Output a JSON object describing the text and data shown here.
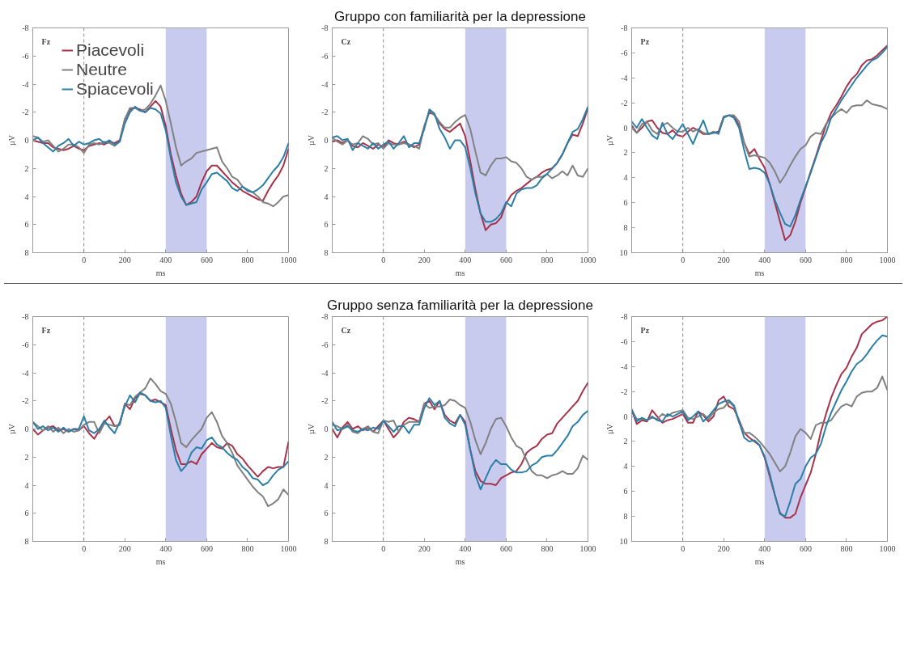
{
  "chart_data": [
    {
      "type": "line",
      "annotations": [
        "Fz"
      ],
      "xlabel": "ms",
      "ylabel": "µV",
      "legend": "top left",
      "x": [
        -250,
        -225,
        -200,
        -175,
        -150,
        -125,
        -100,
        -75,
        -50,
        -25,
        0,
        25,
        50,
        75,
        100,
        125,
        150,
        175,
        200,
        225,
        250,
        275,
        300,
        325,
        350,
        375,
        400,
        425,
        450,
        475,
        500,
        525,
        550,
        575,
        600,
        625,
        650,
        675,
        700,
        725,
        750,
        775,
        800,
        825,
        850,
        875,
        900,
        925,
        950,
        975,
        1000
      ],
      "xlim": [
        -250,
        1000
      ],
      "xticks": [
        0,
        200,
        400,
        600,
        800,
        1000
      ],
      "ylim": [
        8,
        -8
      ],
      "yticks": [
        -8,
        -6,
        -4,
        -2,
        0,
        2,
        4,
        6,
        8
      ],
      "ref_lines": [
        {
          "axis": "x",
          "value": 0,
          "color": "#8c8c8c",
          "line_style": "dashed"
        }
      ],
      "bands": [
        {
          "axis": "x",
          "from": 400,
          "to": 600,
          "color": "#c8cbee"
        }
      ],
      "series": [
        {
          "name": "Piacevoli",
          "color": "#a8324a",
          "values": [
            0.0,
            0.1,
            0.2,
            0.2,
            0.5,
            0.6,
            0.7,
            0.6,
            0.4,
            0.6,
            0.7,
            0.4,
            0.3,
            0.2,
            0.3,
            0.1,
            0.2,
            0.0,
            -1.5,
            -2.2,
            -2.3,
            -2.2,
            -2.0,
            -2.4,
            -2.8,
            -2.4,
            -1.0,
            1.0,
            2.5,
            3.8,
            4.6,
            4.4,
            4.0,
            3.0,
            2.2,
            1.8,
            1.8,
            2.2,
            2.6,
            3.0,
            3.3,
            3.6,
            3.8,
            4.0,
            4.2,
            4.3,
            3.6,
            3.0,
            2.5,
            1.8,
            0.6
          ]
        },
        {
          "name": "Neutre",
          "color": "#808080",
          "values": [
            -0.3,
            -0.2,
            0.1,
            0.0,
            0.4,
            0.8,
            0.6,
            0.3,
            0.3,
            0.5,
            0.9,
            0.3,
            0.2,
            0.3,
            0.1,
            0.2,
            0.4,
            0.1,
            -1.5,
            -2.3,
            -2.3,
            -2.1,
            -2.2,
            -2.6,
            -3.2,
            -3.9,
            -2.8,
            -1.2,
            0.5,
            1.8,
            1.5,
            1.3,
            0.9,
            0.8,
            0.7,
            0.6,
            0.5,
            1.5,
            2.0,
            2.6,
            2.8,
            3.3,
            3.5,
            3.7,
            4.0,
            4.4,
            4.5,
            4.7,
            4.4,
            4.0,
            3.9
          ]
        },
        {
          "name": "Spiacevoli",
          "color": "#2b7fa6",
          "values": [
            0.0,
            -0.2,
            0.2,
            0.5,
            0.8,
            0.4,
            0.2,
            -0.1,
            0.4,
            0.1,
            0.3,
            0.2,
            0.0,
            -0.1,
            0.2,
            0.0,
            0.3,
            0.1,
            -1.2,
            -2.0,
            -2.4,
            -2.1,
            -2.0,
            -2.3,
            -2.2,
            -1.9,
            -0.7,
            1.3,
            3.0,
            4.0,
            4.6,
            4.5,
            4.4,
            3.5,
            3.0,
            2.4,
            2.3,
            2.6,
            2.9,
            3.4,
            3.6,
            3.3,
            3.6,
            3.7,
            3.5,
            3.2,
            2.7,
            2.2,
            1.8,
            1.2,
            0.2
          ]
        }
      ]
    },
    {
      "type": "line",
      "title": "Gruppo con familiarità per la depressione",
      "annotations": [
        "Cz"
      ],
      "xlabel": "ms",
      "ylabel": "µV",
      "x": [
        -250,
        -225,
        -200,
        -175,
        -150,
        -125,
        -100,
        -75,
        -50,
        -25,
        0,
        25,
        50,
        75,
        100,
        125,
        150,
        175,
        200,
        225,
        250,
        275,
        300,
        325,
        350,
        375,
        400,
        425,
        450,
        475,
        500,
        525,
        550,
        575,
        600,
        625,
        650,
        675,
        700,
        725,
        750,
        775,
        800,
        825,
        850,
        875,
        900,
        925,
        950,
        975,
        1000
      ],
      "xlim": [
        -250,
        1000
      ],
      "xticks": [
        0,
        200,
        400,
        600,
        800,
        1000
      ],
      "ylim": [
        8,
        -8
      ],
      "yticks": [
        -8,
        -6,
        -4,
        -2,
        0,
        2,
        4,
        6,
        8
      ],
      "ref_lines": [
        {
          "axis": "x",
          "value": 0,
          "color": "#8c8c8c",
          "line_style": "dashed"
        }
      ],
      "bands": [
        {
          "axis": "x",
          "from": 400,
          "to": 600,
          "color": "#c8cbee"
        }
      ],
      "series": [
        {
          "color": "#a8324a",
          "values": [
            0.1,
            0.0,
            0.2,
            0.0,
            0.4,
            0.5,
            0.2,
            0.4,
            0.6,
            0.3,
            0.5,
            0.0,
            0.2,
            0.3,
            0.1,
            0.3,
            0.5,
            0.3,
            -1.0,
            -2.0,
            -1.8,
            -1.2,
            -0.8,
            -0.6,
            -0.9,
            -1.2,
            -0.3,
            1.5,
            3.5,
            5.2,
            6.4,
            6.0,
            5.9,
            5.5,
            4.5,
            3.9,
            3.6,
            3.4,
            3.1,
            2.8,
            2.6,
            2.3,
            2.1,
            2.0,
            1.6,
            1.0,
            0.2,
            -0.4,
            -0.3,
            -1.2,
            -2.3
          ]
        },
        {
          "color": "#808080",
          "values": [
            -0.2,
            0.1,
            0.3,
            0.0,
            0.3,
            0.2,
            -0.3,
            -0.1,
            0.3,
            0.2,
            0.6,
            0.2,
            0.3,
            0.3,
            0.2,
            0.3,
            0.4,
            0.6,
            -1.0,
            -2.1,
            -1.8,
            -1.3,
            -0.9,
            -0.9,
            -1.3,
            -1.6,
            -1.8,
            -0.8,
            0.8,
            2.3,
            2.5,
            1.8,
            1.3,
            1.3,
            1.2,
            1.5,
            1.6,
            2.0,
            2.6,
            2.8,
            2.6,
            2.6,
            2.4,
            2.7,
            2.5,
            2.2,
            2.5,
            1.8,
            2.5,
            2.6,
            2.0
          ]
        },
        {
          "color": "#2b7fa6",
          "values": [
            -0.2,
            -0.3,
            0.0,
            -0.1,
            0.7,
            0.2,
            0.4,
            0.6,
            0.2,
            0.6,
            0.3,
            0.1,
            0.6,
            0.2,
            -0.3,
            0.5,
            0.2,
            0.2,
            -0.8,
            -2.2,
            -1.9,
            -0.8,
            -0.2,
            0.6,
            0.0,
            0.0,
            0.5,
            2.0,
            3.8,
            5.2,
            5.8,
            5.8,
            5.6,
            5.2,
            4.4,
            4.7,
            3.8,
            3.5,
            3.4,
            3.4,
            3.2,
            2.7,
            2.4,
            2.0,
            1.6,
            1.0,
            0.2,
            -0.6,
            -0.8,
            -1.5,
            -2.4
          ]
        }
      ]
    },
    {
      "type": "line",
      "annotations": [
        "Pz"
      ],
      "xlabel": "ms",
      "ylabel": "µV",
      "x": [
        -250,
        -225,
        -200,
        -175,
        -150,
        -125,
        -100,
        -75,
        -50,
        -25,
        0,
        25,
        50,
        75,
        100,
        125,
        150,
        175,
        200,
        225,
        250,
        275,
        300,
        325,
        350,
        375,
        400,
        425,
        450,
        475,
        500,
        525,
        550,
        575,
        600,
        625,
        650,
        675,
        700,
        725,
        750,
        775,
        800,
        825,
        850,
        875,
        900,
        925,
        950,
        975,
        1000
      ],
      "xlim": [
        -250,
        1000
      ],
      "xticks": [
        0,
        200,
        400,
        600,
        800,
        1000
      ],
      "ylim": [
        10,
        -8
      ],
      "yticks": [
        -8,
        -6,
        -4,
        -2,
        0,
        2,
        4,
        6,
        8,
        10
      ],
      "ref_lines": [
        {
          "axis": "x",
          "value": 0,
          "color": "#8c8c8c",
          "line_style": "dashed"
        }
      ],
      "bands": [
        {
          "axis": "x",
          "from": 400,
          "to": 600,
          "color": "#c8cbee"
        }
      ],
      "series": [
        {
          "color": "#a8324a",
          "values": [
            -0.2,
            0.4,
            0.0,
            -0.5,
            -0.6,
            0.0,
            0.4,
            0.5,
            0.2,
            0.6,
            0.7,
            0.3,
            0.0,
            0.2,
            0.5,
            0.5,
            0.4,
            0.3,
            -0.9,
            -1.0,
            -0.9,
            -0.2,
            1.2,
            2.1,
            1.7,
            2.5,
            3.2,
            4.5,
            6.0,
            7.5,
            9.0,
            8.6,
            7.5,
            6.0,
            4.8,
            3.5,
            2.3,
            1.0,
            -0.2,
            -1.2,
            -1.8,
            -2.5,
            -3.3,
            -3.9,
            -4.3,
            -5.0,
            -5.4,
            -5.5,
            -5.8,
            -6.2,
            -6.6
          ]
        },
        {
          "color": "#808080",
          "values": [
            0.0,
            0.4,
            -0.3,
            -0.5,
            0.2,
            0.5,
            -0.2,
            -0.4,
            0.0,
            0.3,
            0.3,
            0.0,
            0.3,
            0.1,
            0.4,
            0.5,
            0.3,
            0.5,
            -0.9,
            -1.0,
            -1.0,
            -0.5,
            1.2,
            2.3,
            2.2,
            2.3,
            2.4,
            2.8,
            3.5,
            4.4,
            3.8,
            3.0,
            2.3,
            1.7,
            1.4,
            0.7,
            0.4,
            0.5,
            -0.3,
            -0.8,
            -1.2,
            -1.5,
            -1.2,
            -1.7,
            -1.8,
            -1.8,
            -2.2,
            -1.9,
            -1.8,
            -1.7,
            -1.5
          ]
        },
        {
          "color": "#2b7fa6",
          "values": [
            -0.5,
            0.0,
            -0.7,
            0.0,
            0.6,
            0.9,
            -0.4,
            0.5,
            0.9,
            0.3,
            -0.3,
            0.5,
            1.3,
            0.3,
            -0.6,
            0.5,
            0.4,
            0.4,
            -0.8,
            -1.0,
            -0.8,
            0.0,
            1.8,
            3.3,
            3.2,
            3.3,
            3.6,
            4.5,
            5.8,
            6.8,
            7.7,
            7.9,
            7.0,
            5.8,
            4.7,
            3.6,
            2.4,
            1.2,
            0.4,
            -0.8,
            -1.5,
            -2.2,
            -2.8,
            -3.4,
            -4.0,
            -4.5,
            -5.0,
            -5.4,
            -5.6,
            -6.0,
            -6.5
          ]
        }
      ]
    },
    {
      "type": "line",
      "annotations": [
        "Fz"
      ],
      "xlabel": "ms",
      "ylabel": "µV",
      "x": [
        -250,
        -225,
        -200,
        -175,
        -150,
        -125,
        -100,
        -75,
        -50,
        -25,
        0,
        25,
        50,
        75,
        100,
        125,
        150,
        175,
        200,
        225,
        250,
        275,
        300,
        325,
        350,
        375,
        400,
        425,
        450,
        475,
        500,
        525,
        550,
        575,
        600,
        625,
        650,
        675,
        700,
        725,
        750,
        775,
        800,
        825,
        850,
        875,
        900,
        925,
        950,
        975,
        1000
      ],
      "xlim": [
        -250,
        1000
      ],
      "xticks": [
        0,
        200,
        400,
        600,
        800,
        1000
      ],
      "ylim": [
        8,
        -8
      ],
      "yticks": [
        -8,
        -6,
        -4,
        -2,
        0,
        2,
        4,
        6,
        8
      ],
      "ref_lines": [
        {
          "axis": "x",
          "value": 0,
          "color": "#8c8c8c",
          "line_style": "dashed"
        }
      ],
      "bands": [
        {
          "axis": "x",
          "from": 400,
          "to": 600,
          "color": "#c8cbee"
        }
      ],
      "series": [
        {
          "color": "#a8324a",
          "values": [
            0.0,
            0.4,
            0.1,
            -0.1,
            -0.2,
            0.1,
            0.0,
            0.2,
            0.0,
            0.1,
            -0.2,
            0.3,
            0.7,
            0.1,
            -0.5,
            -0.9,
            -0.2,
            -0.3,
            -1.8,
            -1.4,
            -2.2,
            -2.5,
            -2.4,
            -2.0,
            -2.1,
            -1.9,
            -1.7,
            0.0,
            1.5,
            2.5,
            2.5,
            2.3,
            2.5,
            1.8,
            1.4,
            1.0,
            1.3,
            1.4,
            1.0,
            1.2,
            1.8,
            2.1,
            2.6,
            3.0,
            3.4,
            3.0,
            2.7,
            2.8,
            2.7,
            2.7,
            0.9
          ]
        },
        {
          "color": "#808080",
          "values": [
            -0.5,
            -0.2,
            0.1,
            -0.2,
            0.2,
            -0.1,
            0.3,
            0.0,
            0.2,
            0.1,
            -0.3,
            -0.5,
            -0.5,
            0.3,
            -0.4,
            -0.3,
            -0.2,
            -0.3,
            -1.8,
            -1.7,
            -2.3,
            -2.6,
            -2.9,
            -3.6,
            -3.2,
            -2.7,
            -2.5,
            -1.8,
            -0.5,
            1.0,
            1.3,
            0.8,
            0.4,
            0.0,
            -0.8,
            -1.2,
            -0.5,
            0.5,
            1.0,
            1.7,
            2.6,
            3.1,
            3.6,
            4.1,
            4.5,
            4.8,
            5.5,
            5.3,
            5.0,
            4.3,
            4.7
          ]
        },
        {
          "color": "#2b7fa6",
          "values": [
            -0.5,
            0.0,
            -0.2,
            0.1,
            -0.1,
            0.2,
            -0.1,
            0.2,
            0.0,
            0.0,
            -0.9,
            0.1,
            0.3,
            0.0,
            -0.6,
            -0.1,
            0.3,
            -0.5,
            -1.6,
            -2.4,
            -1.9,
            -2.6,
            -2.4,
            -2.0,
            -1.9,
            -2.0,
            -1.5,
            0.5,
            2.2,
            3.0,
            2.6,
            1.7,
            1.3,
            1.4,
            0.8,
            0.6,
            1.1,
            1.3,
            1.7,
            2.0,
            2.2,
            2.7,
            3.0,
            3.5,
            3.6,
            4.0,
            3.8,
            3.3,
            2.9,
            2.7,
            2.3
          ]
        }
      ]
    },
    {
      "type": "line",
      "title": "Gruppo senza familiarità per la depressione",
      "annotations": [
        "Cz"
      ],
      "xlabel": "ms",
      "ylabel": "µV",
      "x": [
        -250,
        -225,
        -200,
        -175,
        -150,
        -125,
        -100,
        -75,
        -50,
        -25,
        0,
        25,
        50,
        75,
        100,
        125,
        150,
        175,
        200,
        225,
        250,
        275,
        300,
        325,
        350,
        375,
        400,
        425,
        450,
        475,
        500,
        525,
        550,
        575,
        600,
        625,
        650,
        675,
        700,
        725,
        750,
        775,
        800,
        825,
        850,
        875,
        900,
        925,
        950,
        975,
        1000
      ],
      "xlim": [
        -250,
        1000
      ],
      "xticks": [
        0,
        200,
        400,
        600,
        800,
        1000
      ],
      "ylim": [
        8,
        -8
      ],
      "yticks": [
        -8,
        -6,
        -4,
        -2,
        0,
        2,
        4,
        6,
        8
      ],
      "ref_lines": [
        {
          "axis": "x",
          "value": 0,
          "color": "#8c8c8c",
          "line_style": "dashed"
        }
      ],
      "bands": [
        {
          "axis": "x",
          "from": 400,
          "to": 600,
          "color": "#c8cbee"
        }
      ],
      "series": [
        {
          "color": "#a8324a",
          "values": [
            0.0,
            0.6,
            -0.1,
            -0.5,
            0.0,
            -0.2,
            0.1,
            -0.1,
            0.2,
            -0.2,
            -0.6,
            0.0,
            0.6,
            0.2,
            -0.5,
            -0.8,
            -0.7,
            -0.5,
            -1.8,
            -2.0,
            -1.4,
            -2.0,
            -1.0,
            -0.6,
            -0.4,
            -1.0,
            -0.5,
            1.5,
            3.0,
            3.7,
            3.9,
            3.9,
            4.0,
            3.5,
            3.3,
            3.1,
            3.0,
            2.5,
            1.7,
            1.4,
            1.2,
            0.7,
            0.4,
            0.3,
            -0.4,
            -0.8,
            -1.2,
            -1.6,
            -2.0,
            -2.7,
            -3.3
          ]
        },
        {
          "color": "#808080",
          "values": [
            -0.3,
            -0.2,
            0.0,
            -0.3,
            0.2,
            0.3,
            0.0,
            -0.2,
            0.2,
            0.3,
            -0.6,
            -0.5,
            -0.6,
            0.2,
            -0.3,
            -0.5,
            -0.5,
            -0.5,
            -1.8,
            -1.5,
            -1.6,
            -1.6,
            -1.7,
            -2.1,
            -2.0,
            -1.7,
            -1.5,
            -0.5,
            0.8,
            1.8,
            1.0,
            0.0,
            -0.7,
            -0.8,
            -0.2,
            0.6,
            1.2,
            1.4,
            2.2,
            3.0,
            3.3,
            3.3,
            3.5,
            3.3,
            3.2,
            3.0,
            3.2,
            3.2,
            2.8,
            1.9,
            2.2
          ]
        },
        {
          "color": "#2b7fa6",
          "values": [
            -0.5,
            0.1,
            0.0,
            -0.2,
            0.1,
            0.2,
            0.0,
            0.1,
            -0.1,
            0.0,
            -0.6,
            -0.2,
            0.2,
            -0.2,
            -0.2,
            0.3,
            -0.3,
            -0.3,
            -1.5,
            -2.2,
            -1.7,
            -2.0,
            -0.8,
            -0.4,
            -0.2,
            -1.0,
            -0.3,
            1.5,
            3.3,
            4.3,
            3.5,
            2.7,
            2.2,
            2.5,
            2.5,
            2.9,
            3.1,
            3.1,
            3.0,
            2.6,
            2.4,
            2.0,
            1.9,
            1.9,
            1.5,
            1.0,
            0.5,
            -0.2,
            -0.5,
            -1.0,
            -1.3
          ]
        }
      ]
    },
    {
      "type": "line",
      "annotations": [
        "Pz"
      ],
      "xlabel": "ms",
      "ylabel": "µV",
      "x": [
        -250,
        -225,
        -200,
        -175,
        -150,
        -125,
        -100,
        -75,
        -50,
        -25,
        0,
        25,
        50,
        75,
        100,
        125,
        150,
        175,
        200,
        225,
        250,
        275,
        300,
        325,
        350,
        375,
        400,
        425,
        450,
        475,
        500,
        525,
        550,
        575,
        600,
        625,
        650,
        675,
        700,
        725,
        750,
        775,
        800,
        825,
        850,
        875,
        900,
        925,
        950,
        975,
        1000
      ],
      "xlim": [
        -250,
        1000
      ],
      "xticks": [
        0,
        200,
        400,
        600,
        800,
        1000
      ],
      "ylim": [
        10,
        -8
      ],
      "yticks": [
        -8,
        -6,
        -4,
        -2,
        0,
        2,
        4,
        6,
        8,
        10
      ],
      "ref_lines": [
        {
          "axis": "x",
          "value": 0,
          "color": "#8c8c8c",
          "line_style": "dashed"
        }
      ],
      "bands": [
        {
          "axis": "x",
          "from": 400,
          "to": 600,
          "color": "#c8cbee"
        }
      ],
      "series": [
        {
          "color": "#a8324a",
          "values": [
            -0.5,
            0.6,
            0.3,
            0.4,
            -0.5,
            0.0,
            0.5,
            0.3,
            0.2,
            0.0,
            -0.2,
            0.5,
            0.5,
            -0.4,
            -0.1,
            0.4,
            0.0,
            -1.3,
            -1.6,
            -0.8,
            -0.6,
            0.3,
            1.3,
            1.7,
            2.0,
            2.3,
            3.3,
            4.8,
            6.3,
            7.7,
            8.1,
            8.1,
            7.8,
            6.5,
            5.5,
            4.5,
            3.0,
            1.2,
            -0.2,
            -1.5,
            -2.5,
            -3.4,
            -3.9,
            -4.8,
            -5.5,
            -6.6,
            -7.0,
            -7.4,
            -7.6,
            -7.7,
            -8.0
          ]
        },
        {
          "color": "#808080",
          "values": [
            -0.5,
            0.2,
            0.2,
            0.3,
            0.1,
            0.2,
            -0.2,
            0.0,
            -0.3,
            -0.4,
            -0.5,
            0.1,
            0.2,
            0.0,
            -0.2,
            0.2,
            -0.3,
            -0.6,
            -0.7,
            -1.2,
            -0.8,
            0.5,
            1.3,
            1.3,
            1.6,
            2.0,
            2.5,
            3.0,
            3.7,
            4.4,
            4.0,
            2.9,
            1.6,
            1.0,
            1.3,
            1.8,
            0.7,
            0.5,
            0.5,
            0.3,
            -0.3,
            -0.8,
            -1.0,
            -0.8,
            -1.6,
            -1.9,
            -2.0,
            -2.0,
            -2.3,
            -3.2,
            -2.1
          ]
        },
        {
          "color": "#2b7fa6",
          "values": [
            -0.6,
            0.4,
            0.1,
            0.3,
            0.0,
            0.3,
            0.4,
            -0.2,
            0.0,
            -0.2,
            -0.4,
            0.3,
            0.0,
            -0.4,
            0.4,
            0.0,
            -0.5,
            -1.0,
            -1.2,
            -1.3,
            -0.9,
            0.4,
            1.7,
            2.0,
            1.9,
            2.3,
            3.2,
            4.6,
            6.3,
            7.8,
            8.0,
            6.8,
            5.4,
            5.0,
            4.0,
            3.3,
            3.0,
            2.2,
            0.8,
            -0.3,
            -1.2,
            -2.1,
            -2.8,
            -3.6,
            -4.2,
            -4.5,
            -5.0,
            -5.6,
            -6.1,
            -6.5,
            -6.4
          ]
        }
      ]
    }
  ]
}
